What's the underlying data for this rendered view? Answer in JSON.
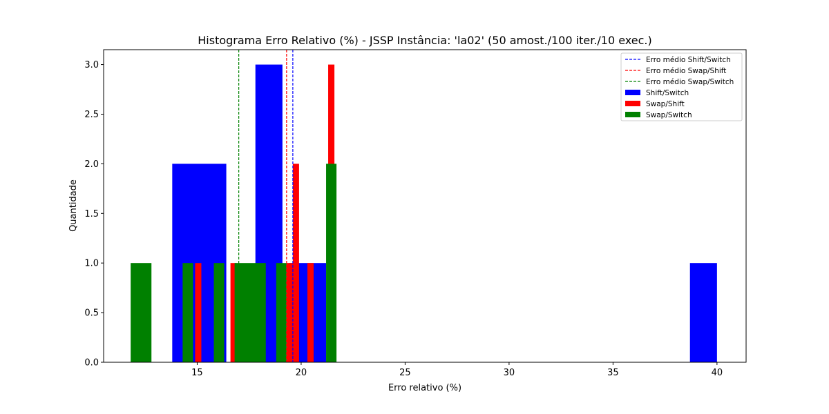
{
  "chart_data": {
    "type": "bar",
    "title": "Histograma Erro Relativo (%) - JSSP Instância: 'la02' (50 amost./100 iter./10 exec.)",
    "xlabel": "Erro relativo (%)",
    "ylabel": "Quantidade",
    "xlim": [
      10.5,
      41.4
    ],
    "ylim": [
      0,
      3.15
    ],
    "xticks": [
      15,
      20,
      25,
      30,
      35,
      40
    ],
    "yticks": [
      0.0,
      0.5,
      1.0,
      1.5,
      2.0,
      2.5,
      3.0
    ],
    "xtick_labels": [
      "15",
      "20",
      "25",
      "30",
      "35",
      "40"
    ],
    "ytick_labels": [
      "0.0",
      "0.5",
      "1.0",
      "1.5",
      "2.0",
      "2.5",
      "3.0"
    ],
    "grid": false,
    "legend_position": "top-right",
    "series": [
      {
        "name": "Shift/Switch",
        "color": "#0000ff",
        "bars": [
          {
            "x0": 13.8,
            "x1": 16.4,
            "value": 2
          },
          {
            "x0": 17.8,
            "x1": 19.1,
            "value": 3
          },
          {
            "x0": 19.4,
            "x1": 20.7,
            "value": 1
          },
          {
            "x0": 20.7,
            "x1": 21.2,
            "value": 1
          },
          {
            "x0": 38.7,
            "x1": 40.0,
            "value": 1
          }
        ]
      },
      {
        "name": "Swap/Shift",
        "color": "#ff0000",
        "bars": [
          {
            "x0": 14.9,
            "x1": 15.2,
            "value": 1
          },
          {
            "x0": 16.6,
            "x1": 16.9,
            "value": 1
          },
          {
            "x0": 19.3,
            "x1": 19.6,
            "value": 1
          },
          {
            "x0": 19.6,
            "x1": 19.9,
            "value": 2
          },
          {
            "x0": 20.3,
            "x1": 20.6,
            "value": 1
          },
          {
            "x0": 21.3,
            "x1": 21.6,
            "value": 3
          }
        ]
      },
      {
        "name": "Swap/Switch",
        "color": "#008000",
        "bars": [
          {
            "x0": 11.8,
            "x1": 12.8,
            "value": 1
          },
          {
            "x0": 14.3,
            "x1": 14.8,
            "value": 1
          },
          {
            "x0": 15.8,
            "x1": 16.3,
            "value": 1
          },
          {
            "x0": 16.8,
            "x1": 18.3,
            "value": 1
          },
          {
            "x0": 18.8,
            "x1": 19.3,
            "value": 1
          },
          {
            "x0": 21.2,
            "x1": 21.7,
            "value": 2
          }
        ]
      }
    ],
    "mean_lines": [
      {
        "name": "Erro médio Shift/Switch",
        "color": "#0000ff",
        "x": 19.6
      },
      {
        "name": "Erro médio Swap/Shift",
        "color": "#ff0000",
        "x": 19.3
      },
      {
        "name": "Erro médio Swap/Switch",
        "color": "#008000",
        "x": 17.0
      }
    ]
  }
}
